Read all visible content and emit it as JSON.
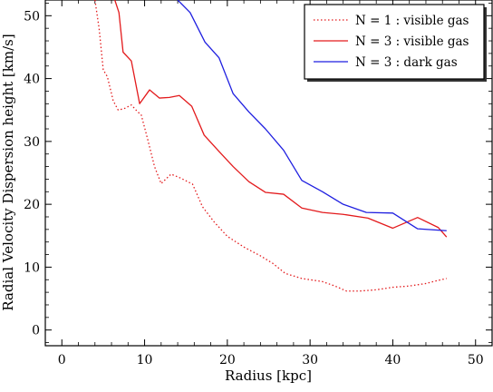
{
  "chart_data": {
    "type": "line",
    "title": "",
    "xlabel": "Radius [kpc]",
    "ylabel": "Radial Velocity Dispersion height [km/s]",
    "xlim": [
      -2,
      52
    ],
    "ylim": [
      -2.5,
      52.5
    ],
    "xticks": [
      "0",
      "10",
      "20",
      "30",
      "40",
      "50"
    ],
    "yticks": [
      "0",
      "10",
      "20",
      "30",
      "40",
      "50"
    ],
    "grid": false,
    "legend_position": "top-right",
    "series": [
      {
        "name": "N = 1 : visible gas",
        "color": "#e31a1c",
        "style": "dotted",
        "x": [
          4.0,
          4.5,
          5.0,
          5.5,
          6.2,
          6.8,
          7.5,
          8.4,
          9.1,
          9.6,
          10.4,
          11.2,
          12.0,
          13.2,
          14.3,
          15.8,
          17.0,
          18.4,
          20.0,
          22.0,
          24.0,
          25.5,
          27.0,
          29.0,
          31.5,
          33.0,
          34.4,
          36.0,
          38.0,
          40.0,
          42.0,
          44.0,
          45.5,
          46.5
        ],
        "y": [
          52.5,
          48.0,
          41.4,
          40.3,
          36.5,
          35.0,
          35.2,
          35.8,
          34.8,
          34.2,
          30.2,
          26.0,
          23.3,
          24.8,
          24.2,
          23.2,
          19.6,
          17.2,
          14.9,
          13.2,
          11.8,
          10.6,
          9.0,
          8.2,
          7.7,
          7.0,
          6.2,
          6.2,
          6.4,
          6.8,
          7.0,
          7.4,
          7.9,
          8.2
        ]
      },
      {
        "name": "N = 3 : visible gas",
        "color": "#e31a1c",
        "style": "solid",
        "x": [
          6.4,
          6.9,
          7.4,
          8.4,
          9.4,
          10.6,
          11.8,
          13.0,
          14.2,
          15.7,
          17.2,
          19.0,
          20.7,
          22.6,
          24.6,
          26.8,
          29.0,
          31.5,
          34.0,
          37.0,
          40.0,
          43.0,
          45.5,
          46.5
        ],
        "y": [
          52.5,
          50.5,
          44.2,
          42.8,
          36.0,
          38.2,
          36.9,
          37.0,
          37.3,
          35.6,
          31.0,
          28.4,
          26.0,
          23.6,
          21.9,
          21.6,
          19.4,
          18.7,
          18.4,
          17.8,
          16.2,
          17.9,
          16.3,
          14.8
        ]
      },
      {
        "name": "N = 3 : dark gas",
        "color": "#1f1fe0",
        "style": "solid",
        "x": [
          14.0,
          15.5,
          17.3,
          19.0,
          20.7,
          22.6,
          24.6,
          26.8,
          29.0,
          31.5,
          34.0,
          36.8,
          40.0,
          43.0,
          46.5
        ],
        "y": [
          52.5,
          50.5,
          45.8,
          43.3,
          37.6,
          34.7,
          32.0,
          28.6,
          23.8,
          22.0,
          20.0,
          18.7,
          18.6,
          16.1,
          15.8
        ]
      }
    ]
  }
}
